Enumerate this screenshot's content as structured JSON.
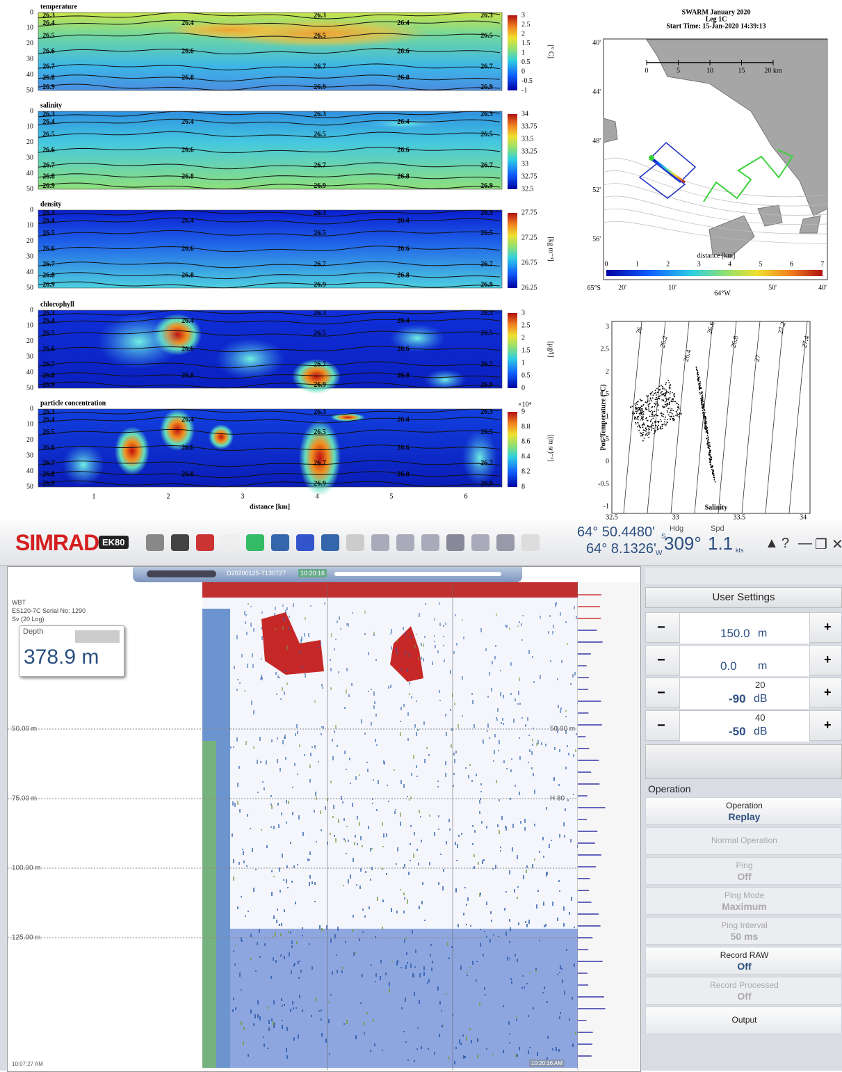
{
  "sections": {
    "panels": [
      {
        "title": "temperature",
        "colorbar_ticks": [
          "3",
          "2.5",
          "2",
          "1.5",
          "1",
          "0.5",
          "0",
          "-0.5",
          "-1"
        ],
        "unit": "[° C]"
      },
      {
        "title": "salinity",
        "colorbar_ticks": [
          "34",
          "33.75",
          "33.5",
          "33.25",
          "33",
          "32.75",
          "32.5"
        ]
      },
      {
        "title": "density",
        "colorbar_ticks": [
          "27.75",
          "27.25",
          "26.75",
          "26.25"
        ],
        "unit": "[kg m⁻³]"
      },
      {
        "title": "chlorophyll",
        "colorbar_ticks": [
          "3",
          "2.5",
          "2",
          "1.5",
          "1",
          "0.5",
          "0"
        ],
        "unit": "[μg/l]"
      },
      {
        "title": "particle concentration",
        "colorbar_ticks": [
          "9",
          "8.8",
          "8.6",
          "8.4",
          "8.2",
          "8"
        ],
        "unit": "[(m sr)⁻¹]",
        "multiplier": "×10⁴"
      }
    ],
    "depth_ticks": [
      "0",
      "10",
      "20",
      "30",
      "40",
      "50"
    ],
    "contour_levels": [
      "26.3",
      "26.4",
      "26.5",
      "26.6",
      "26.7",
      "26.8",
      "26.9"
    ],
    "x_ticks": [
      "1",
      "2",
      "3",
      "4",
      "5",
      "6"
    ],
    "x_label": "distance [km]"
  },
  "map": {
    "title": [
      "SWARM January 2020",
      "Leg 1C",
      "Start Time: 15-Jan-2020 14:39:13"
    ],
    "scale_ticks": [
      "0",
      "5",
      "10",
      "15",
      "20 km"
    ],
    "lat_ticks": [
      "40'",
      "44'",
      "48'",
      "52'",
      "56'",
      "65°S"
    ],
    "lon_ticks": [
      "20'",
      "10'",
      "64°W",
      "50'",
      "40'"
    ],
    "colorbar_label": "distance [km]",
    "colorbar_ticks": [
      "0",
      "1",
      "2",
      "3",
      "4",
      "5",
      "6",
      "7"
    ]
  },
  "ts": {
    "yticks": [
      "3",
      "2.5",
      "2",
      "1.5",
      "1",
      "0.5",
      "0",
      "-0.5",
      "-1"
    ],
    "xticks": [
      "32.5",
      "33",
      "33.5",
      "34"
    ],
    "xlabel": "Salinity",
    "ylabel": "Pot. Temperature (°C)",
    "isopycnals": [
      "26",
      "26.2",
      "26.4",
      "26.6",
      "26.8",
      "27",
      "27.2",
      "27.4"
    ]
  },
  "ui": {
    "toolbar": {
      "brand": "SIMRAD",
      "badge": "EK80",
      "lat": "64° 50.4480'",
      "lat_hemi": "S",
      "lon": "64° 8.1326'",
      "lon_hemi": "W",
      "hdg_label": "Hdg",
      "hdg": "309°",
      "spd_label": "Spd",
      "spd": "1.1",
      "spd_unit": "kts"
    },
    "echogram": {
      "file": "D20200125-T130727",
      "time_chip": "10:20:16",
      "info": [
        "WBT",
        "ES120-7C Serial No: 1290",
        "Sv (20 Log)"
      ],
      "depth_label": "Depth",
      "depth_value": "378.9 m",
      "depth_marks": [
        "50.00 m",
        "75.00 m",
        "100.00 m",
        "125.00 m"
      ],
      "right_marks": [
        "50.00 m",
        "H 80"
      ],
      "start_time": "10:07:27 AM",
      "end_time": "10:20:16 AM"
    },
    "settings": {
      "title": "User Settings",
      "rows": [
        {
          "value": "150.0",
          "unit": "m"
        },
        {
          "value": "0.0",
          "unit": "m"
        },
        {
          "sup": "20",
          "value": "-90",
          "unit": "dB"
        },
        {
          "sup": "40",
          "value": "-50",
          "unit": "dB"
        }
      ],
      "section": "Operation",
      "items": [
        {
          "label": "Operation",
          "value": "Replay"
        },
        {
          "label": "Normal Operation"
        },
        {
          "label": "Ping",
          "value": "Off"
        },
        {
          "label": "Ping Mode",
          "value": "Maximum"
        },
        {
          "label": "Ping Interval",
          "value": "50 ms"
        },
        {
          "label": "Record RAW",
          "value": "Off"
        },
        {
          "label": "Record Processed",
          "value": "Off"
        },
        {
          "label": "Output"
        }
      ]
    }
  }
}
